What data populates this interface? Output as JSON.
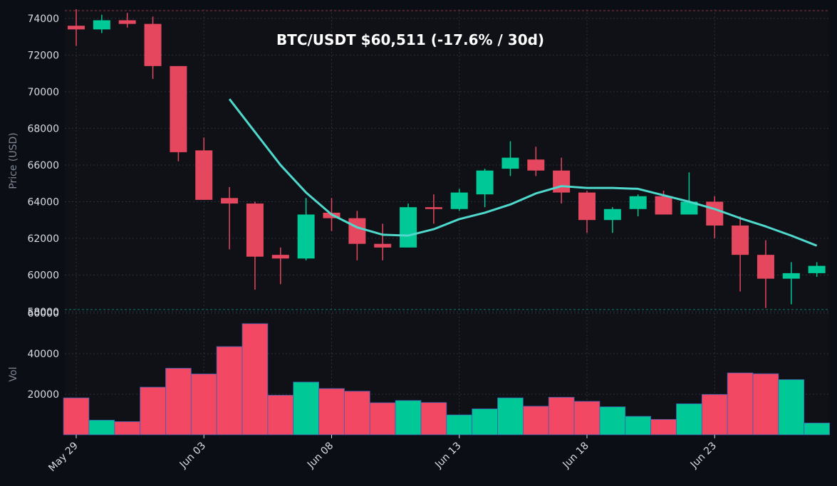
{
  "chart_data": [
    {
      "type": "candlestick",
      "title": "BTC/USDT   $60,511   (-17.6% / 30d)",
      "ylabel": "Price (USD)",
      "ylim": [
        58000,
        74500
      ],
      "yticks": [
        58000,
        60000,
        62000,
        64000,
        66000,
        68000,
        70000,
        72000,
        74000
      ],
      "xticks": [
        "May 29",
        "Jun 03",
        "Jun 08",
        "Jun 13",
        "Jun 18",
        "Jun 23"
      ],
      "xtick_index": [
        0,
        5,
        10,
        15,
        20,
        25
      ],
      "grid": true,
      "colors": {
        "up": "#00c896",
        "down": "#e5475f",
        "ma": "#4fd8cc",
        "background": "#0f1116"
      },
      "candles": [
        {
          "date": "May 29",
          "open": 73600,
          "high": 74500,
          "low": 72500,
          "close": 73400
        },
        {
          "date": "May 30",
          "open": 73400,
          "high": 74200,
          "low": 73200,
          "close": 73900
        },
        {
          "date": "May 31",
          "open": 73900,
          "high": 74300,
          "low": 73500,
          "close": 73700
        },
        {
          "date": "Jun 01",
          "open": 73700,
          "high": 74100,
          "low": 70700,
          "close": 71400
        },
        {
          "date": "Jun 02",
          "open": 71400,
          "high": 71400,
          "low": 66200,
          "close": 66700
        },
        {
          "date": "Jun 03",
          "open": 66800,
          "high": 67500,
          "low": 64100,
          "close": 64100
        },
        {
          "date": "Jun 04",
          "open": 64200,
          "high": 64800,
          "low": 61400,
          "close": 63900
        },
        {
          "date": "Jun 05",
          "open": 63900,
          "high": 64000,
          "low": 59200,
          "close": 61000
        },
        {
          "date": "Jun 06",
          "open": 61100,
          "high": 61500,
          "low": 59500,
          "close": 60900
        },
        {
          "date": "Jun 07",
          "open": 60900,
          "high": 64200,
          "low": 60800,
          "close": 63300
        },
        {
          "date": "Jun 08",
          "open": 63400,
          "high": 64200,
          "low": 62400,
          "close": 63100
        },
        {
          "date": "Jun 09",
          "open": 63100,
          "high": 63500,
          "low": 60800,
          "close": 61700
        },
        {
          "date": "Jun 10",
          "open": 61700,
          "high": 62800,
          "low": 60800,
          "close": 61500
        },
        {
          "date": "Jun 11",
          "open": 61500,
          "high": 63900,
          "low": 61500,
          "close": 63700
        },
        {
          "date": "Jun 12",
          "open": 63700,
          "high": 64400,
          "low": 62800,
          "close": 63600
        },
        {
          "date": "Jun 13",
          "open": 63600,
          "high": 64700,
          "low": 63500,
          "close": 64500
        },
        {
          "date": "Jun 14",
          "open": 64400,
          "high": 65800,
          "low": 63700,
          "close": 65700
        },
        {
          "date": "Jun 15",
          "open": 65800,
          "high": 67300,
          "low": 65400,
          "close": 66400
        },
        {
          "date": "Jun 16",
          "open": 66300,
          "high": 67000,
          "low": 65400,
          "close": 65700
        },
        {
          "date": "Jun 17",
          "open": 65700,
          "high": 66400,
          "low": 63900,
          "close": 64500
        },
        {
          "date": "Jun 18",
          "open": 64500,
          "high": 64600,
          "low": 62300,
          "close": 63000
        },
        {
          "date": "Jun 19",
          "open": 63000,
          "high": 63700,
          "low": 62300,
          "close": 63600
        },
        {
          "date": "Jun 20",
          "open": 63600,
          "high": 64400,
          "low": 63200,
          "close": 64300
        },
        {
          "date": "Jun 21",
          "open": 64300,
          "high": 64600,
          "low": 63300,
          "close": 63300
        },
        {
          "date": "Jun 22",
          "open": 63300,
          "high": 65600,
          "low": 63300,
          "close": 64000
        },
        {
          "date": "Jun 23",
          "open": 64000,
          "high": 64300,
          "low": 62000,
          "close": 62700
        },
        {
          "date": "Jun 24",
          "open": 62700,
          "high": 63200,
          "low": 59100,
          "close": 61100
        },
        {
          "date": "Jun 25",
          "open": 61100,
          "high": 61900,
          "low": 58200,
          "close": 59800
        },
        {
          "date": "Jun 26",
          "open": 59800,
          "high": 60700,
          "low": 58400,
          "close": 60100
        },
        {
          "date": "Jun 27",
          "open": 60100,
          "high": 60700,
          "low": 59900,
          "close": 60500
        }
      ],
      "ma_line": {
        "x_index": [
          6,
          7,
          8,
          9,
          10,
          11,
          12,
          13,
          14,
          15,
          16,
          17,
          18,
          19,
          20,
          21,
          22,
          23,
          24,
          25,
          26,
          27,
          28,
          29
        ],
        "values": [
          69600,
          67800,
          66000,
          64500,
          63300,
          62600,
          62200,
          62150,
          62500,
          63050,
          63400,
          63850,
          64450,
          64850,
          64750,
          64750,
          64700,
          64350,
          64000,
          63600,
          63100,
          62650,
          62150,
          61600
        ]
      }
    },
    {
      "type": "bar",
      "ylabel": "Vol",
      "ylim": [
        0,
        60000
      ],
      "yticks": [
        20000,
        40000,
        60000
      ],
      "values": [
        18200,
        7200,
        6500,
        23500,
        32800,
        30000,
        43500,
        54800,
        19500,
        26000,
        22800,
        21500,
        15800,
        16900,
        15900,
        9800,
        12800,
        18200,
        14100,
        18500,
        16500,
        13800,
        9100,
        7600,
        15300,
        19900,
        30500,
        30100,
        27200,
        5800
      ],
      "direction": [
        "down",
        "up",
        "down",
        "down",
        "down",
        "down",
        "down",
        "down",
        "down",
        "up",
        "down",
        "down",
        "down",
        "up",
        "down",
        "up",
        "up",
        "up",
        "down",
        "down",
        "down",
        "up",
        "up",
        "down",
        "up",
        "down",
        "down",
        "down",
        "up",
        "up"
      ]
    }
  ]
}
